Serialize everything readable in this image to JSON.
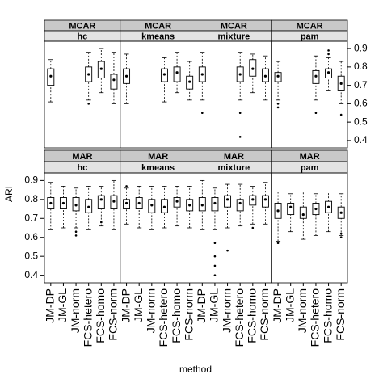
{
  "chart_data": {
    "type": "box",
    "x_label": "method",
    "y_label": "ARI",
    "categories": [
      "JM-DP",
      "JM-GL",
      "JM-norm",
      "FCS-hetero",
      "FCS-homo",
      "FCS-norm"
    ],
    "ylim": [
      0.36,
      0.94
    ],
    "yticks": [
      0.4,
      0.5,
      0.6,
      0.7,
      0.8,
      0.9
    ],
    "panels": [
      {
        "strip": [
          "MCAR",
          "hc"
        ],
        "boxes": [
          {
            "min": 0.61,
            "q1": 0.7,
            "median": 0.75,
            "q3": 0.79,
            "max": 0.84,
            "outliers": []
          },
          null,
          null,
          {
            "min": 0.62,
            "q1": 0.72,
            "median": 0.76,
            "q3": 0.8,
            "max": 0.88,
            "outliers": [
              0.6
            ]
          },
          {
            "min": 0.66,
            "q1": 0.74,
            "median": 0.79,
            "q3": 0.83,
            "max": 0.9,
            "outliers": []
          },
          {
            "min": 0.6,
            "q1": 0.68,
            "median": 0.73,
            "q3": 0.76,
            "max": 0.88,
            "outliers": []
          }
        ]
      },
      {
        "strip": [
          "MCAR",
          "kmeans"
        ],
        "boxes": [
          {
            "min": 0.6,
            "q1": 0.71,
            "median": 0.75,
            "q3": 0.79,
            "max": 0.87,
            "outliers": []
          },
          null,
          null,
          {
            "min": 0.61,
            "q1": 0.72,
            "median": 0.76,
            "q3": 0.79,
            "max": 0.85,
            "outliers": []
          },
          {
            "min": 0.66,
            "q1": 0.72,
            "median": 0.77,
            "q3": 0.8,
            "max": 0.88,
            "outliers": []
          },
          {
            "min": 0.62,
            "q1": 0.68,
            "median": 0.72,
            "q3": 0.75,
            "max": 0.83,
            "outliers": []
          }
        ]
      },
      {
        "strip": [
          "MCAR",
          "mixture"
        ],
        "boxes": [
          {
            "min": 0.62,
            "q1": 0.72,
            "median": 0.76,
            "q3": 0.8,
            "max": 0.88,
            "outliers": [
              0.55
            ]
          },
          null,
          null,
          {
            "min": 0.62,
            "q1": 0.72,
            "median": 0.76,
            "q3": 0.8,
            "max": 0.88,
            "outliers": [
              0.55,
              0.42
            ]
          },
          {
            "min": 0.66,
            "q1": 0.75,
            "median": 0.79,
            "q3": 0.84,
            "max": 0.87,
            "outliers": []
          },
          {
            "min": 0.62,
            "q1": 0.72,
            "median": 0.75,
            "q3": 0.79,
            "max": 0.86,
            "outliers": []
          }
        ]
      },
      {
        "strip": [
          "MCAR",
          "pam"
        ],
        "boxes": [
          {
            "min": 0.62,
            "q1": 0.72,
            "median": 0.75,
            "q3": 0.77,
            "max": 0.83,
            "outliers": [
              0.6,
              0.58
            ]
          },
          null,
          null,
          {
            "min": 0.62,
            "q1": 0.71,
            "median": 0.75,
            "q3": 0.78,
            "max": 0.86,
            "outliers": [
              0.55
            ]
          },
          {
            "min": 0.67,
            "q1": 0.74,
            "median": 0.77,
            "q3": 0.79,
            "max": 0.85,
            "outliers": [
              0.89,
              0.87
            ]
          },
          {
            "min": 0.6,
            "q1": 0.67,
            "median": 0.71,
            "q3": 0.75,
            "max": 0.83,
            "outliers": [
              0.54
            ]
          }
        ]
      },
      {
        "strip": [
          "MAR",
          "hc"
        ],
        "boxes": [
          {
            "min": 0.64,
            "q1": 0.75,
            "median": 0.78,
            "q3": 0.81,
            "max": 0.89,
            "outliers": []
          },
          {
            "min": 0.65,
            "q1": 0.75,
            "median": 0.78,
            "q3": 0.81,
            "max": 0.87,
            "outliers": []
          },
          {
            "min": 0.65,
            "q1": 0.74,
            "median": 0.77,
            "q3": 0.81,
            "max": 0.86,
            "outliers": [
              0.63,
              0.61
            ]
          },
          {
            "min": 0.64,
            "q1": 0.73,
            "median": 0.76,
            "q3": 0.8,
            "max": 0.87,
            "outliers": []
          },
          {
            "min": 0.66,
            "q1": 0.75,
            "median": 0.8,
            "q3": 0.82,
            "max": 0.87,
            "outliers": [
              0.68
            ]
          },
          {
            "min": 0.64,
            "q1": 0.75,
            "median": 0.79,
            "q3": 0.82,
            "max": 0.9,
            "outliers": []
          }
        ]
      },
      {
        "strip": [
          "MAR",
          "kmeans"
        ],
        "boxes": [
          {
            "min": 0.67,
            "q1": 0.75,
            "median": 0.78,
            "q3": 0.8,
            "max": 0.86,
            "outliers": [
              0.87
            ]
          },
          {
            "min": 0.65,
            "q1": 0.75,
            "median": 0.78,
            "q3": 0.81,
            "max": 0.87,
            "outliers": []
          },
          {
            "min": 0.64,
            "q1": 0.73,
            "median": 0.77,
            "q3": 0.8,
            "max": 0.87,
            "outliers": []
          },
          {
            "min": 0.65,
            "q1": 0.73,
            "median": 0.76,
            "q3": 0.8,
            "max": 0.87,
            "outliers": []
          },
          {
            "min": 0.66,
            "q1": 0.76,
            "median": 0.79,
            "q3": 0.81,
            "max": 0.87,
            "outliers": []
          },
          {
            "min": 0.65,
            "q1": 0.74,
            "median": 0.77,
            "q3": 0.8,
            "max": 0.87,
            "outliers": []
          }
        ]
      },
      {
        "strip": [
          "MAR",
          "mixture"
        ],
        "boxes": [
          {
            "min": 0.64,
            "q1": 0.74,
            "median": 0.77,
            "q3": 0.81,
            "max": 0.9,
            "outliers": []
          },
          {
            "min": 0.64,
            "q1": 0.74,
            "median": 0.78,
            "q3": 0.81,
            "max": 0.86,
            "outliers": [
              0.57,
              0.5,
              0.45,
              0.4
            ]
          },
          {
            "min": 0.65,
            "q1": 0.76,
            "median": 0.8,
            "q3": 0.82,
            "max": 0.88,
            "outliers": [
              0.53
            ]
          },
          {
            "min": 0.66,
            "q1": 0.74,
            "median": 0.78,
            "q3": 0.8,
            "max": 0.88,
            "outliers": []
          },
          {
            "min": 0.67,
            "q1": 0.77,
            "median": 0.8,
            "q3": 0.82,
            "max": 0.87,
            "outliers": [
              0.65
            ]
          },
          {
            "min": 0.67,
            "q1": 0.76,
            "median": 0.8,
            "q3": 0.82,
            "max": 0.89,
            "outliers": []
          }
        ]
      },
      {
        "strip": [
          "MAR",
          "pam"
        ],
        "boxes": [
          {
            "min": 0.58,
            "q1": 0.7,
            "median": 0.74,
            "q3": 0.78,
            "max": 0.84,
            "outliers": [
              0.57
            ]
          },
          {
            "min": 0.63,
            "q1": 0.72,
            "median": 0.76,
            "q3": 0.78,
            "max": 0.83,
            "outliers": []
          },
          {
            "min": 0.59,
            "q1": 0.7,
            "median": 0.72,
            "q3": 0.76,
            "max": 0.84,
            "outliers": []
          },
          {
            "min": 0.61,
            "q1": 0.72,
            "median": 0.75,
            "q3": 0.78,
            "max": 0.83,
            "outliers": []
          },
          {
            "min": 0.63,
            "q1": 0.73,
            "median": 0.76,
            "q3": 0.79,
            "max": 0.84,
            "outliers": []
          },
          {
            "min": 0.61,
            "q1": 0.7,
            "median": 0.73,
            "q3": 0.76,
            "max": 0.83,
            "outliers": [
              0.62,
              0.6
            ]
          }
        ]
      }
    ]
  }
}
